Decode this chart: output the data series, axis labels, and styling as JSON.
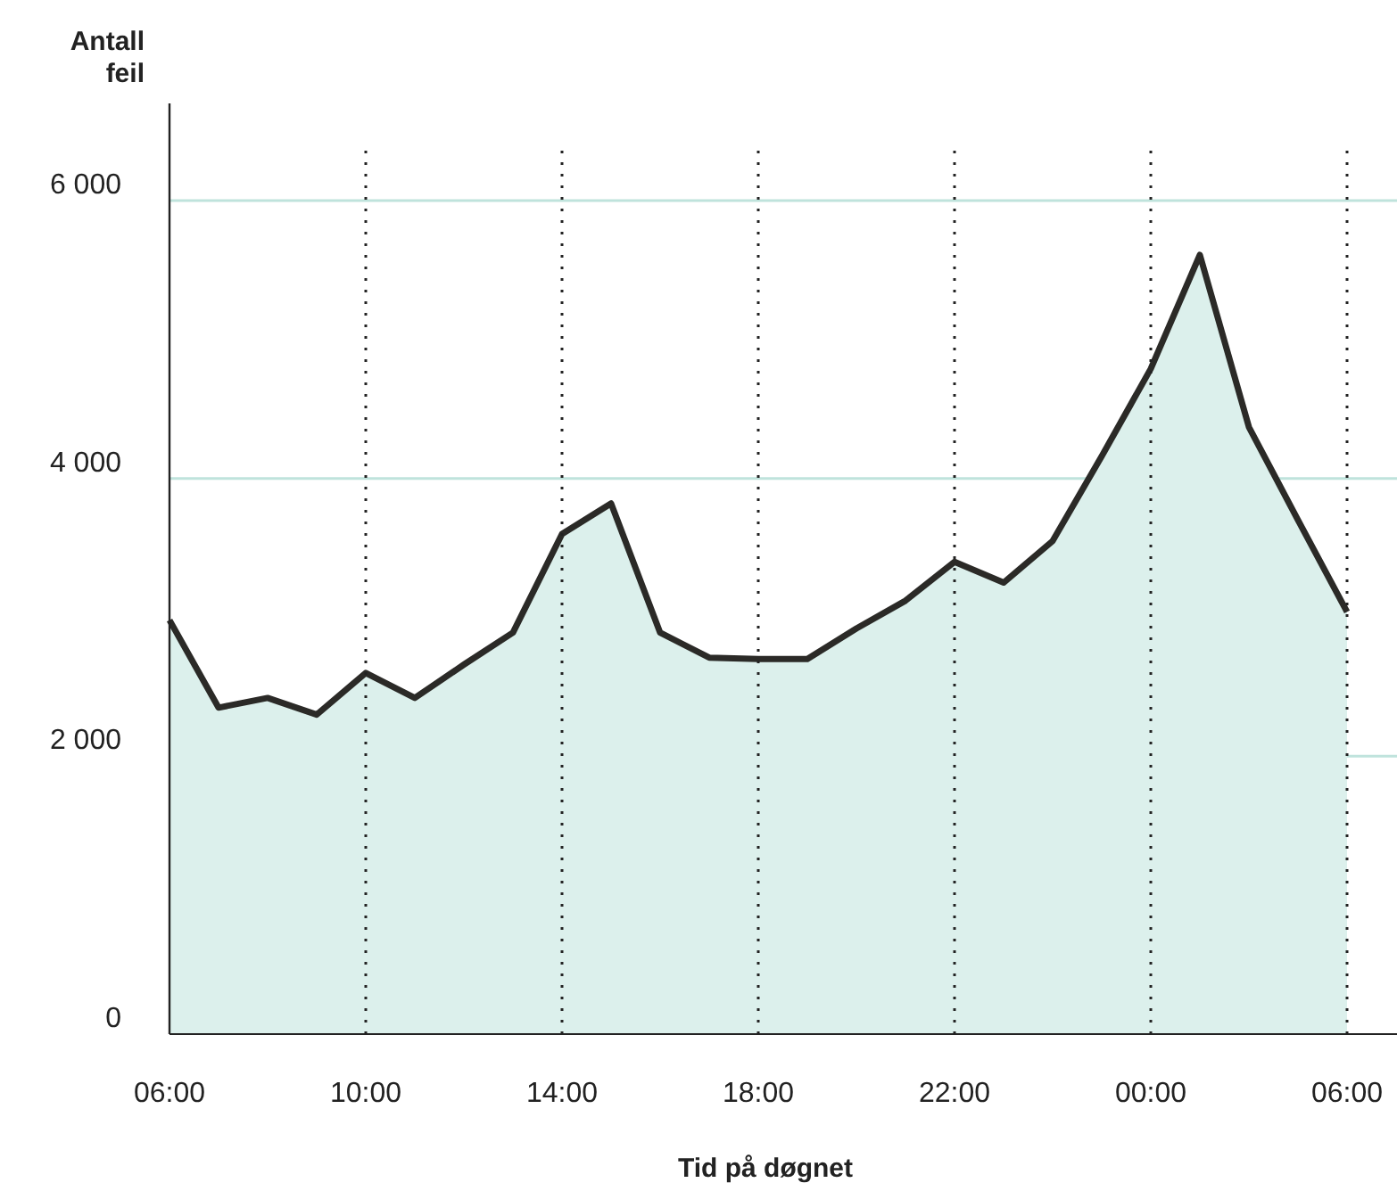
{
  "chart_data": {
    "type": "area",
    "ylabel": "Antall feil",
    "xlabel": "Tid på døgnet",
    "categories": [
      "06:00",
      null,
      null,
      null,
      "10:00",
      null,
      null,
      null,
      "14:00",
      null,
      null,
      null,
      "18:00",
      null,
      null,
      null,
      "22:00",
      null,
      null,
      null,
      "00:00",
      null,
      null,
      null,
      "06:00"
    ],
    "series": [
      {
        "color": "#2b2a27",
        "values": [
          2980,
          2350,
          2420,
          2300,
          2600,
          2420,
          2660,
          2890,
          3600,
          3820,
          2890,
          2710,
          2700,
          2700,
          2920,
          3120,
          3400,
          3250,
          3550,
          4160,
          4790,
          5610,
          4370,
          3700,
          3040
        ]
      }
    ],
    "ylim": [
      0,
      6700
    ],
    "yticks": [
      {
        "value": 0,
        "label": "0"
      },
      {
        "value": 2000,
        "label": "2 000"
      },
      {
        "value": 4000,
        "label": "4 000"
      },
      {
        "value": 6000,
        "label": "6 000"
      }
    ],
    "grid": true
  }
}
